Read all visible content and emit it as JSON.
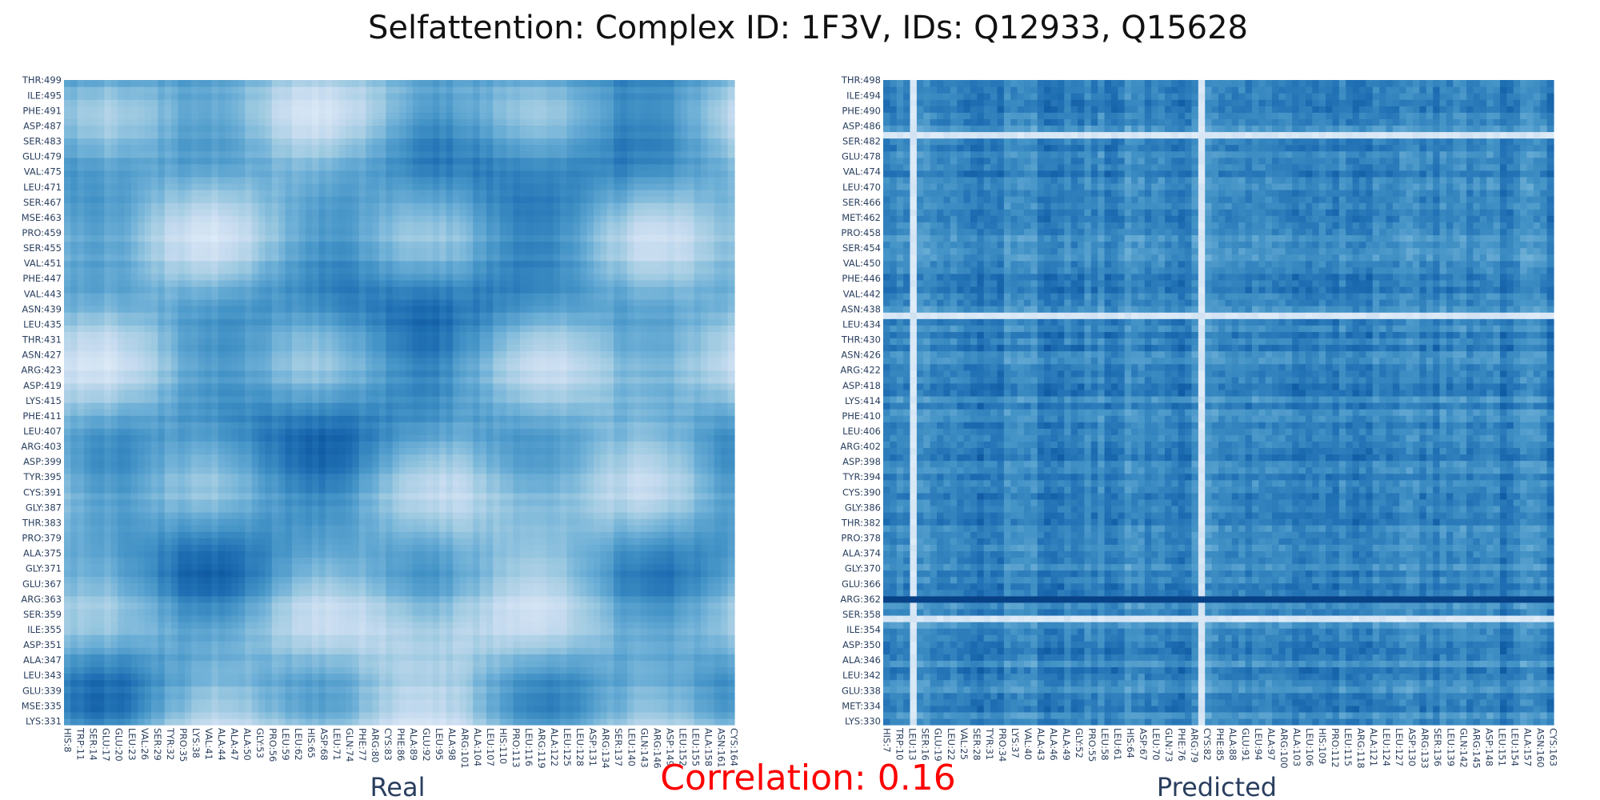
{
  "chart_data": {
    "title": "Selfattention: Complex ID: 1F3V, IDs: Q12933, Q15628",
    "correlation_text": "Correlation: 0.16",
    "colorscale": [
      "#f7fbff",
      "#deebf7",
      "#c6dbef",
      "#9ecae1",
      "#6baed6",
      "#4292c6",
      "#2171b5",
      "#08519c",
      "#08306b"
    ],
    "panels": [
      {
        "type": "heatmap",
        "name": "Real",
        "x_start": 8,
        "x_end": 165,
        "y_start": 331,
        "y_end": 500,
        "x_tick_labels": [
          "HIS:8",
          "TRP:11",
          "SER:14",
          "GLU:17",
          "GLU:20",
          "LEU:23",
          "VAL:26",
          "SER:29",
          "TYR:32",
          "PRO:35",
          "LYS:38",
          "VAL:41",
          "ALA:44",
          "ALA:47",
          "ALA:50",
          "GLY:53",
          "PRO:56",
          "LEU:59",
          "LEU:62",
          "HIS:65",
          "ASP:68",
          "LEU:71",
          "GLN:74",
          "PHE:77",
          "ARG:80",
          "CYS:83",
          "PHE:86",
          "ALA:89",
          "GLU:92",
          "LEU:95",
          "ALA:98",
          "ARG:101",
          "ALA:104",
          "LEU:107",
          "HIS:110",
          "PRO:113",
          "LEU:116",
          "ARG:119",
          "ALA:122",
          "LEU:125",
          "LEU:128",
          "ASP:131",
          "ARG:134",
          "SER:137",
          "LEU:140",
          "GLN:143",
          "ARG:146",
          "ASP:149",
          "LEU:152",
          "LEU:155",
          "ALA:158",
          "ASN:161",
          "CYS:164"
        ],
        "y_tick_labels": [
          "LYS:331",
          "MSE:335",
          "GLU:339",
          "LEU:343",
          "ALA:347",
          "ASP:351",
          "ILE:355",
          "SER:359",
          "ARG:363",
          "GLU:367",
          "GLY:371",
          "ALA:375",
          "PRO:379",
          "THR:383",
          "GLY:387",
          "CYS:391",
          "TYR:395",
          "ASP:399",
          "ARG:403",
          "LEU:407",
          "PHE:411",
          "LYS:415",
          "ASP:419",
          "ARG:423",
          "ASN:427",
          "THR:431",
          "LEU:435",
          "ASN:439",
          "VAL:443",
          "PHE:447",
          "VAL:451",
          "SER:455",
          "PRO:459",
          "MSE:463",
          "SER:467",
          "LEU:471",
          "VAL:475",
          "GLU:479",
          "SER:483",
          "ASP:487",
          "PHE:491",
          "ILE:495",
          "THR:499"
        ]
      },
      {
        "type": "heatmap",
        "name": "Predicted",
        "x_start": 7,
        "x_end": 164,
        "y_start": 330,
        "y_end": 499,
        "x_tick_labels": [
          "HIS:7",
          "TRP:10",
          "LEU:13",
          "SER:16",
          "GLU:19",
          "LEU:22",
          "VAL:25",
          "SER:28",
          "TYR:31",
          "PRO:34",
          "LYS:37",
          "VAL:40",
          "ALA:43",
          "ALA:46",
          "ALA:49",
          "GLY:52",
          "PRO:55",
          "LEU:58",
          "LEU:61",
          "HIS:64",
          "ASP:67",
          "LEU:70",
          "GLN:73",
          "PHE:76",
          "ARG:79",
          "CYS:82",
          "PHE:85",
          "ALA:88",
          "GLU:91",
          "LEU:94",
          "ALA:97",
          "ARG:100",
          "ALA:103",
          "LEU:106",
          "HIS:109",
          "PRO:112",
          "LEU:115",
          "ARG:118",
          "ALA:121",
          "LEU:124",
          "LEU:127",
          "ASP:130",
          "ARG:133",
          "SER:136",
          "LEU:139",
          "GLN:142",
          "ARG:145",
          "ASP:148",
          "LEU:151",
          "LEU:154",
          "ALA:157",
          "ASN:160",
          "CYS:163"
        ],
        "y_tick_labels": [
          "LYS:330",
          "MET:334",
          "GLU:338",
          "LEU:342",
          "ALA:346",
          "ASP:350",
          "ILE:354",
          "SER:358",
          "ARG:362",
          "GLU:366",
          "GLY:370",
          "ALA:374",
          "PRO:378",
          "THR:382",
          "GLY:386",
          "CYS:390",
          "TYR:394",
          "ASP:398",
          "ARG:402",
          "LEU:406",
          "PHE:410",
          "LYS:414",
          "ASP:418",
          "ARG:422",
          "ASN:426",
          "THR:430",
          "LEU:434",
          "ASN:438",
          "VAL:442",
          "PHE:446",
          "VAL:450",
          "SER:454",
          "PRO:458",
          "MET:462",
          "SER:466",
          "LEU:470",
          "VAL:474",
          "GLU:478",
          "SER:482",
          "ASP:486",
          "PHE:490",
          "ILE:494",
          "THR:498"
        ],
        "light_rows": [
          "ASP:486",
          "ASN:438",
          "SER:358"
        ],
        "light_columns": [
          "CYS:82",
          "LEU:13"
        ],
        "dark_rows": [
          "ARG:362"
        ]
      }
    ]
  }
}
